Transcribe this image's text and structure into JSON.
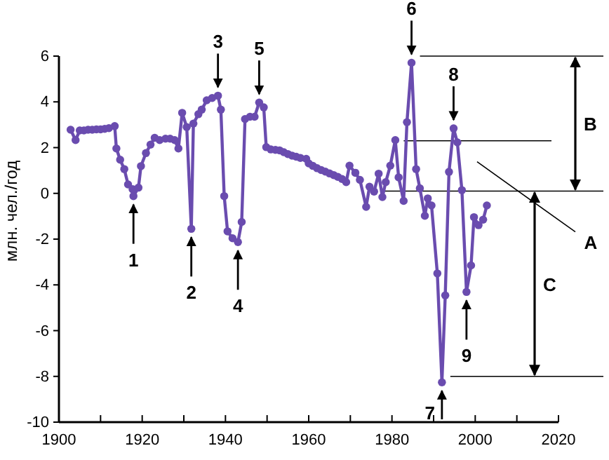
{
  "chart_data": {
    "type": "line",
    "ylabel": "млн. чел./год",
    "xlim": [
      1900,
      2020
    ],
    "xticks": [
      1900,
      {
        "value": 1910,
        "label": null
      },
      1920,
      {
        "value": 1930,
        "label": null
      },
      1940,
      {
        "value": 1950,
        "label": null
      },
      1960,
      {
        "value": 1970,
        "label": null
      },
      1980,
      {
        "value": 1990,
        "label": null
      },
      2000,
      {
        "value": 2010,
        "label": null
      },
      2020
    ],
    "ylim": [
      -10,
      6
    ],
    "yticks": [
      -10,
      -8,
      -6,
      -4,
      -2,
      0,
      2,
      4,
      6
    ],
    "grid": false,
    "marker": "circle",
    "line_style": "solid",
    "series": [
      {
        "color": "#6a4caf",
        "x": [
          1902.8,
          1904.0,
          1905,
          1906,
          1907,
          1908,
          1909,
          1910,
          1911,
          1912,
          1913.4,
          1913.8,
          1914.7,
          1915.7,
          1916.6,
          1917.7,
          1917.9,
          1919.1,
          1919.7,
          1920.9,
          1922,
          1923,
          1924.2,
          1925.6,
          1926.7,
          1927.8,
          1928.7,
          1929.6,
          1930.7,
          1931.8,
          1932.3,
          1933.5,
          1934.3,
          1935.5,
          1936.8,
          1938.2,
          1938.9,
          1939.7,
          1940.5,
          1941.7,
          1943.0,
          1943.9,
          1944.7,
          1945.9,
          1947,
          1948.1,
          1949.2,
          1949.8,
          1950.9,
          1952,
          1953,
          1954,
          1955,
          1956,
          1957,
          1958,
          1959.4,
          1960,
          1961,
          1962,
          1963,
          1964,
          1965,
          1966,
          1967,
          1968,
          1969,
          1969.8,
          1971.2,
          1972.3,
          1973.8,
          1974.6,
          1975.7,
          1976.8,
          1977.7,
          1978.5,
          1979.6,
          1980.8,
          1981.6,
          1982.8,
          1983.6,
          1984.7,
          1985.8,
          1986.7,
          1987.9,
          1988.6,
          1989.5,
          1990.9,
          1992,
          1992.8,
          1993.7,
          1994.8,
          1995.7,
          1996.8,
          1997.9,
          1999,
          1999.7,
          2000.8,
          2001.9,
          2002.8
        ],
        "values": [
          2.78,
          2.33,
          2.75,
          2.75,
          2.78,
          2.78,
          2.8,
          2.8,
          2.82,
          2.85,
          2.94,
          1.96,
          1.47,
          1.06,
          0.39,
          0.18,
          -0.12,
          0.25,
          1.19,
          1.76,
          2.13,
          2.43,
          2.33,
          2.39,
          2.39,
          2.33,
          1.96,
          3.52,
          2.9,
          -1.55,
          3.05,
          3.46,
          3.66,
          4.07,
          4.17,
          4.27,
          3.66,
          -0.12,
          -1.66,
          -1.96,
          -2.13,
          -1.25,
          3.25,
          3.35,
          3.35,
          3.97,
          3.76,
          2.02,
          1.92,
          1.9,
          1.88,
          1.8,
          1.72,
          1.65,
          1.6,
          1.55,
          1.51,
          1.31,
          1.2,
          1.1,
          1.02,
          0.95,
          0.87,
          0.8,
          0.72,
          0.63,
          0.49,
          1.21,
          0.9,
          0.59,
          -0.59,
          0.29,
          0.08,
          0.86,
          -0.16,
          0.49,
          1.21,
          2.33,
          0.7,
          -0.33,
          3.11,
          5.71,
          1.06,
          0.22,
          -0.98,
          -0.22,
          -0.53,
          -3.5,
          -8.26,
          -4.46,
          0.94,
          2.84,
          2.23,
          0.14,
          -4.31,
          -3.15,
          -1.04,
          -1.39,
          -1.15,
          -0.53
        ]
      }
    ],
    "ref_lines": [
      {
        "axis": "y",
        "value": 6,
        "color": "#000000"
      },
      {
        "axis": "y",
        "value": 2.3,
        "label": "A",
        "color": "#000000"
      },
      {
        "axis": "y",
        "value": 0.1,
        "color": "#000000"
      },
      {
        "axis": "y",
        "value": -8,
        "color": "#000000"
      }
    ],
    "annotations": [
      "B",
      "C",
      {
        "text": "1",
        "x": 1917.9,
        "y": -0.12
      },
      {
        "text": "2",
        "x": 1931.8,
        "y": -1.55
      },
      {
        "text": "3",
        "x": 1938.2,
        "y": 4.27
      },
      {
        "text": "4",
        "x": 1943.0,
        "y": -2.13
      },
      {
        "text": "5",
        "x": 1948.1,
        "y": 3.97
      },
      {
        "text": "6",
        "x": 1984.7,
        "y": 5.71
      },
      {
        "text": "7",
        "x": 1992,
        "y": -8.26
      },
      {
        "text": "8",
        "x": 1994.8,
        "y": 2.84
      },
      {
        "text": "9",
        "x": 1997.9,
        "y": -4.31
      }
    ]
  }
}
